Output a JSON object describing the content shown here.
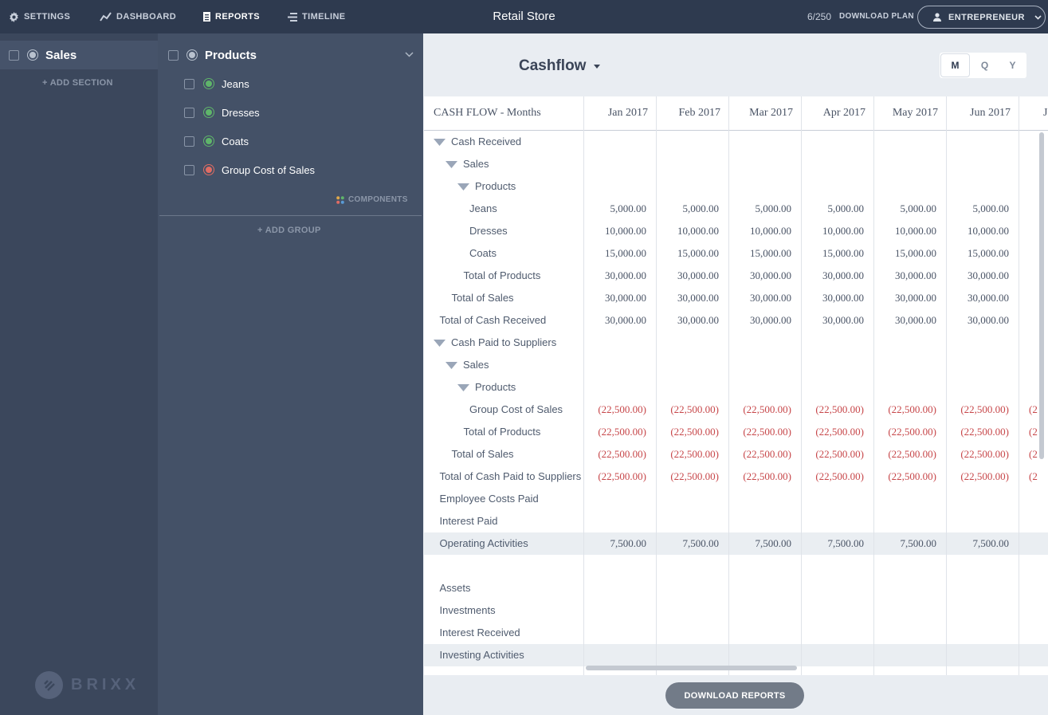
{
  "topbar": {
    "nav": [
      {
        "label": "SETTINGS",
        "icon": "gear-icon"
      },
      {
        "label": "DASHBOARD",
        "icon": "line-chart-icon"
      },
      {
        "label": "REPORTS",
        "icon": "document-icon",
        "active": true
      },
      {
        "label": "TIMELINE",
        "icon": "timeline-icon"
      }
    ],
    "app_title": "Retail Store",
    "plan_count": "6/250",
    "plan_download": "DOWNLOAD PLAN",
    "user_plan": "ENTREPRENEUR"
  },
  "sections_column": {
    "section": "Sales",
    "add_section": "ADD SECTION"
  },
  "groups_column": {
    "group": "Products",
    "items": [
      {
        "label": "Jeans",
        "status": "green"
      },
      {
        "label": "Dresses",
        "status": "green"
      },
      {
        "label": "Coats",
        "status": "green"
      },
      {
        "label": "Group Cost of Sales",
        "status": "red"
      }
    ],
    "components": "COMPONENTS",
    "add_group": "ADD GROUP"
  },
  "brand": "BRIXX",
  "report": {
    "title": "Cashflow",
    "periods": [
      "M",
      "Q",
      "Y"
    ],
    "selected_period": "M",
    "header_label": "CASH FLOW - Months",
    "months": [
      "Jan 2017",
      "Feb 2017",
      "Mar 2017",
      "Apr 2017",
      "May 2017",
      "Jun 2017",
      "J"
    ],
    "rows": [
      {
        "label": "Cash Received",
        "indent": 0,
        "toggle": true,
        "values": []
      },
      {
        "label": "Sales",
        "indent": 1,
        "toggle": true,
        "values": []
      },
      {
        "label": "Products",
        "indent": 2,
        "toggle": true,
        "values": []
      },
      {
        "label": "Jeans",
        "indent": 3,
        "values": [
          "5,000.00",
          "5,000.00",
          "5,000.00",
          "5,000.00",
          "5,000.00",
          "5,000.00"
        ]
      },
      {
        "label": "Dresses",
        "indent": 3,
        "values": [
          "10,000.00",
          "10,000.00",
          "10,000.00",
          "10,000.00",
          "10,000.00",
          "10,000.00"
        ]
      },
      {
        "label": "Coats",
        "indent": 3,
        "values": [
          "15,000.00",
          "15,000.00",
          "15,000.00",
          "15,000.00",
          "15,000.00",
          "15,000.00"
        ]
      },
      {
        "label": "Total of Products",
        "indent": 2.5,
        "values": [
          "30,000.00",
          "30,000.00",
          "30,000.00",
          "30,000.00",
          "30,000.00",
          "30,000.00"
        ]
      },
      {
        "label": "Total of Sales",
        "indent": 1.5,
        "values": [
          "30,000.00",
          "30,000.00",
          "30,000.00",
          "30,000.00",
          "30,000.00",
          "30,000.00"
        ]
      },
      {
        "label": "Total of Cash Received",
        "indent": 0.5,
        "values": [
          "30,000.00",
          "30,000.00",
          "30,000.00",
          "30,000.00",
          "30,000.00",
          "30,000.00"
        ]
      },
      {
        "label": "Cash Paid to Suppliers",
        "indent": 0,
        "toggle": true,
        "values": []
      },
      {
        "label": "Sales",
        "indent": 1,
        "toggle": true,
        "values": []
      },
      {
        "label": "Products",
        "indent": 2,
        "toggle": true,
        "values": []
      },
      {
        "label": "Group Cost of Sales",
        "indent": 3,
        "neg": true,
        "values": [
          "(22,500.00)",
          "(22,500.00)",
          "(22,500.00)",
          "(22,500.00)",
          "(22,500.00)",
          "(22,500.00)",
          "(2"
        ]
      },
      {
        "label": "Total of Products",
        "indent": 2.5,
        "neg": true,
        "values": [
          "(22,500.00)",
          "(22,500.00)",
          "(22,500.00)",
          "(22,500.00)",
          "(22,500.00)",
          "(22,500.00)",
          "(2"
        ]
      },
      {
        "label": "Total of Sales",
        "indent": 1.5,
        "neg": true,
        "values": [
          "(22,500.00)",
          "(22,500.00)",
          "(22,500.00)",
          "(22,500.00)",
          "(22,500.00)",
          "(22,500.00)",
          "(2"
        ]
      },
      {
        "label": "Total of Cash Paid to Suppliers",
        "indent": 0.5,
        "neg": true,
        "values": [
          "(22,500.00)",
          "(22,500.00)",
          "(22,500.00)",
          "(22,500.00)",
          "(22,500.00)",
          "(22,500.00)",
          "(2"
        ]
      },
      {
        "label": "Employee Costs Paid",
        "indent": 0.5,
        "values": []
      },
      {
        "label": "Interest Paid",
        "indent": 0.5,
        "values": []
      },
      {
        "label": "Operating Activities",
        "indent": 0.5,
        "shade": true,
        "values": [
          "7,500.00",
          "7,500.00",
          "7,500.00",
          "7,500.00",
          "7,500.00",
          "7,500.00"
        ]
      },
      {
        "label": "",
        "indent": 0,
        "values": []
      },
      {
        "label": "Assets",
        "indent": 0.5,
        "values": []
      },
      {
        "label": "Investments",
        "indent": 0.5,
        "values": []
      },
      {
        "label": "Interest Received",
        "indent": 0.5,
        "values": []
      },
      {
        "label": "Investing Activities",
        "indent": 0.5,
        "shade": true,
        "values": []
      }
    ]
  },
  "download_reports": "DOWNLOAD REPORTS"
}
